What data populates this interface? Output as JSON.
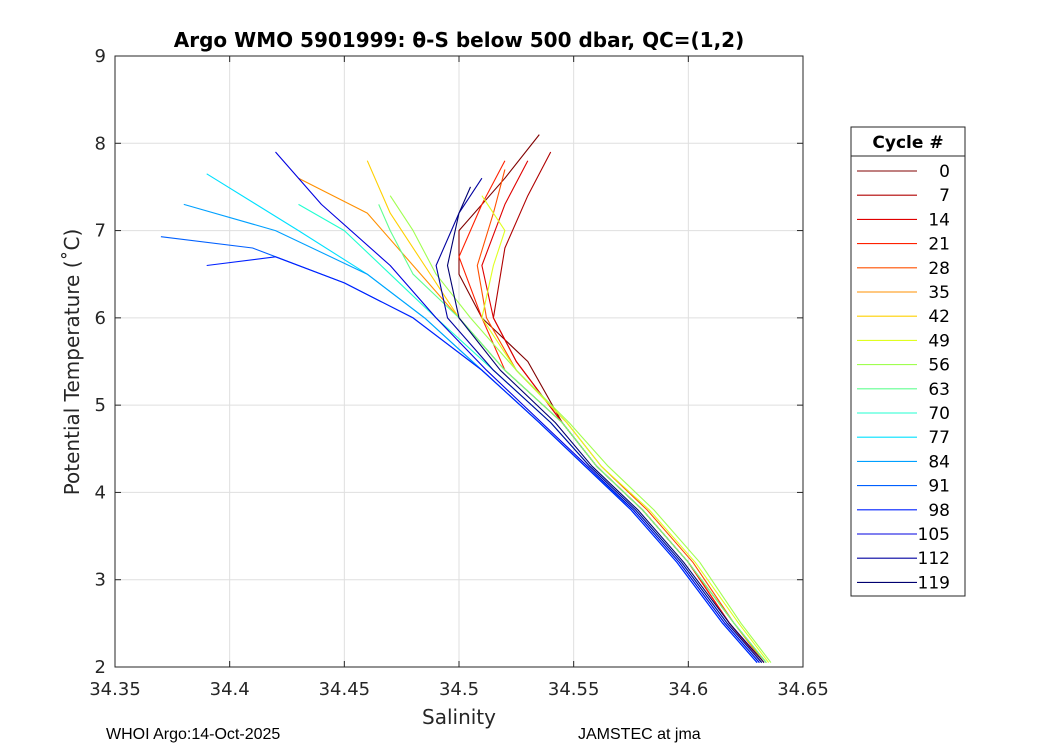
{
  "chart_data": {
    "type": "line",
    "title": "Argo WMO 5901999: θ-S below 500 dbar,  QC=(1,2)",
    "xlabel": "Salinity",
    "ylabel": "Potential Temperature (˚C)",
    "xlim": [
      34.35,
      34.65
    ],
    "ylim": [
      2,
      9
    ],
    "xticks": [
      34.35,
      34.4,
      34.45,
      34.5,
      34.55,
      34.6,
      34.65
    ],
    "xtick_labels": [
      "34.35",
      "34.4",
      "34.45",
      "34.5",
      "34.55",
      "34.6",
      "34.65"
    ],
    "yticks": [
      2,
      3,
      4,
      5,
      6,
      7,
      8,
      9
    ],
    "ytick_labels": [
      "2",
      "3",
      "4",
      "5",
      "6",
      "7",
      "8",
      "9"
    ],
    "grid": true,
    "legend": {
      "title": "Cycle #",
      "placement": "right, outside plot",
      "entries": [
        {
          "label": "0",
          "color": "#800000"
        },
        {
          "label": "7",
          "color": "#b00000"
        },
        {
          "label": "14",
          "color": "#e00000"
        },
        {
          "label": "21",
          "color": "#ff2000"
        },
        {
          "label": "28",
          "color": "#ff5000"
        },
        {
          "label": "35",
          "color": "#ff9000"
        },
        {
          "label": "42",
          "color": "#ffd000"
        },
        {
          "label": "49",
          "color": "#e0ff20"
        },
        {
          "label": "56",
          "color": "#a0ff50"
        },
        {
          "label": "63",
          "color": "#60ff90"
        },
        {
          "label": "70",
          "color": "#20ffd0"
        },
        {
          "label": "77",
          "color": "#00e0ff"
        },
        {
          "label": "84",
          "color": "#00a0ff"
        },
        {
          "label": "91",
          "color": "#0060ff"
        },
        {
          "label": "98",
          "color": "#0020ff"
        },
        {
          "label": "105",
          "color": "#0000e0"
        },
        {
          "label": "112",
          "color": "#0000a0"
        },
        {
          "label": "119",
          "color": "#000070"
        }
      ]
    },
    "series": [
      {
        "name": "0",
        "color": "#800000",
        "x": [
          34.634,
          34.62,
          34.6,
          34.58,
          34.56,
          34.545,
          34.53,
          34.51,
          34.5,
          34.5,
          34.52,
          34.535
        ],
        "y": [
          2.05,
          2.5,
          3.2,
          3.8,
          4.3,
          4.8,
          5.5,
          6.0,
          6.5,
          7.0,
          7.6,
          8.1
        ]
      },
      {
        "name": "7",
        "color": "#b00000",
        "x": [
          34.632,
          34.618,
          34.6,
          34.58,
          34.56,
          34.545,
          34.525,
          34.515,
          34.52,
          34.53,
          34.54
        ],
        "y": [
          2.05,
          2.5,
          3.2,
          3.8,
          4.3,
          4.8,
          5.5,
          6.0,
          6.8,
          7.4,
          7.9
        ]
      },
      {
        "name": "14",
        "color": "#e00000",
        "x": [
          34.632,
          34.618,
          34.6,
          34.58,
          34.56,
          34.545,
          34.525,
          34.515,
          34.51,
          34.52,
          34.53
        ],
        "y": [
          2.05,
          2.5,
          3.2,
          3.8,
          4.3,
          4.8,
          5.5,
          6.0,
          6.6,
          7.3,
          7.8
        ]
      },
      {
        "name": "21",
        "color": "#ff2000",
        "x": [
          34.632,
          34.618,
          34.6,
          34.58,
          34.56,
          34.545,
          34.52,
          34.51,
          34.5,
          34.51,
          34.52
        ],
        "y": [
          2.05,
          2.5,
          3.2,
          3.8,
          4.3,
          4.8,
          5.4,
          6.0,
          6.7,
          7.3,
          7.8
        ]
      },
      {
        "name": "28",
        "color": "#ff5000",
        "x": [
          34.633,
          34.62,
          34.602,
          34.582,
          34.562,
          34.547,
          34.525,
          34.512,
          34.508,
          34.515,
          34.52
        ],
        "y": [
          2.05,
          2.5,
          3.2,
          3.8,
          4.3,
          4.8,
          5.4,
          6.0,
          6.6,
          7.2,
          7.7
        ]
      },
      {
        "name": "35",
        "color": "#ff9000",
        "x": [
          34.633,
          34.62,
          34.6,
          34.58,
          34.56,
          34.545,
          34.52,
          34.5,
          34.48,
          34.46,
          34.43
        ],
        "y": [
          2.05,
          2.5,
          3.2,
          3.8,
          4.3,
          4.8,
          5.4,
          6.0,
          6.6,
          7.2,
          7.6
        ]
      },
      {
        "name": "42",
        "color": "#ffd000",
        "x": [
          34.634,
          34.62,
          34.6,
          34.58,
          34.56,
          34.545,
          34.52,
          34.5,
          34.485,
          34.47,
          34.46
        ],
        "y": [
          2.05,
          2.5,
          3.2,
          3.8,
          4.3,
          4.8,
          5.4,
          6.0,
          6.6,
          7.2,
          7.8
        ]
      },
      {
        "name": "49",
        "color": "#e0ff20",
        "x": [
          34.635,
          34.622,
          34.603,
          34.583,
          34.562,
          34.547,
          34.525,
          34.51,
          34.515,
          34.52,
          34.51
        ],
        "y": [
          2.05,
          2.5,
          3.2,
          3.8,
          4.3,
          4.8,
          5.4,
          6.0,
          6.6,
          7.0,
          7.4
        ]
      },
      {
        "name": "56",
        "color": "#a0ff50",
        "x": [
          34.636,
          34.623,
          34.605,
          34.585,
          34.565,
          34.548,
          34.525,
          34.505,
          34.49,
          34.48,
          34.47
        ],
        "y": [
          2.05,
          2.5,
          3.2,
          3.8,
          4.3,
          4.8,
          5.4,
          6.0,
          6.5,
          7.0,
          7.4
        ]
      },
      {
        "name": "63",
        "color": "#60ff90",
        "x": [
          34.634,
          34.62,
          34.6,
          34.58,
          34.56,
          34.545,
          34.52,
          34.5,
          34.48,
          34.47,
          34.465
        ],
        "y": [
          2.05,
          2.5,
          3.2,
          3.8,
          4.3,
          4.8,
          5.4,
          6.0,
          6.5,
          7.0,
          7.3
        ]
      },
      {
        "name": "70",
        "color": "#20ffd0",
        "x": [
          34.632,
          34.617,
          34.597,
          34.577,
          34.557,
          34.54,
          34.515,
          34.49,
          34.47,
          34.45,
          34.43
        ],
        "y": [
          2.05,
          2.5,
          3.2,
          3.8,
          4.3,
          4.8,
          5.4,
          6.0,
          6.5,
          7.0,
          7.3
        ]
      },
      {
        "name": "77",
        "color": "#00e0ff",
        "x": [
          34.63,
          34.615,
          34.595,
          34.575,
          34.555,
          34.535,
          34.51,
          34.485,
          34.46,
          34.43,
          34.39
        ],
        "y": [
          2.05,
          2.5,
          3.2,
          3.8,
          4.3,
          4.8,
          5.4,
          6.0,
          6.5,
          7.0,
          7.65
        ]
      },
      {
        "name": "84",
        "color": "#00a0ff",
        "x": [
          34.631,
          34.616,
          34.596,
          34.576,
          34.555,
          34.535,
          34.51,
          34.485,
          34.46,
          34.42,
          34.38
        ],
        "y": [
          2.05,
          2.5,
          3.2,
          3.8,
          4.3,
          4.8,
          5.4,
          6.0,
          6.5,
          7.0,
          7.3
        ]
      },
      {
        "name": "91",
        "color": "#0060ff",
        "x": [
          34.63,
          34.615,
          34.595,
          34.575,
          34.555,
          34.535,
          34.51,
          34.48,
          34.45,
          34.41,
          34.37
        ],
        "y": [
          2.05,
          2.5,
          3.2,
          3.8,
          4.3,
          4.8,
          5.4,
          6.0,
          6.4,
          6.8,
          6.93
        ]
      },
      {
        "name": "98",
        "color": "#0020ff",
        "x": [
          34.63,
          34.615,
          34.595,
          34.575,
          34.555,
          34.535,
          34.51,
          34.48,
          34.45,
          34.42,
          34.39
        ],
        "y": [
          2.05,
          2.5,
          3.2,
          3.8,
          4.3,
          4.8,
          5.4,
          6.0,
          6.4,
          6.7,
          6.6
        ]
      },
      {
        "name": "105",
        "color": "#0000e0",
        "x": [
          34.631,
          34.616,
          34.596,
          34.576,
          34.556,
          34.536,
          34.512,
          34.49,
          34.47,
          34.44,
          34.42
        ],
        "y": [
          2.05,
          2.5,
          3.2,
          3.8,
          4.3,
          4.8,
          5.4,
          6.0,
          6.6,
          7.3,
          7.9
        ]
      },
      {
        "name": "112",
        "color": "#0000a0",
        "x": [
          34.632,
          34.617,
          34.597,
          34.577,
          34.557,
          34.54,
          34.515,
          34.495,
          34.49,
          34.5,
          34.51
        ],
        "y": [
          2.05,
          2.5,
          3.2,
          3.8,
          4.3,
          4.8,
          5.4,
          6.0,
          6.6,
          7.2,
          7.6
        ]
      },
      {
        "name": "119",
        "color": "#000070",
        "x": [
          34.633,
          34.618,
          34.598,
          34.578,
          34.558,
          34.542,
          34.518,
          34.5,
          34.495,
          34.5,
          34.505
        ],
        "y": [
          2.05,
          2.5,
          3.2,
          3.8,
          4.3,
          4.8,
          5.4,
          6.0,
          6.6,
          7.2,
          7.5
        ]
      }
    ]
  },
  "footer": {
    "left": "WHOI Argo:14-Oct-2025",
    "right": "JAMSTEC at jma"
  }
}
